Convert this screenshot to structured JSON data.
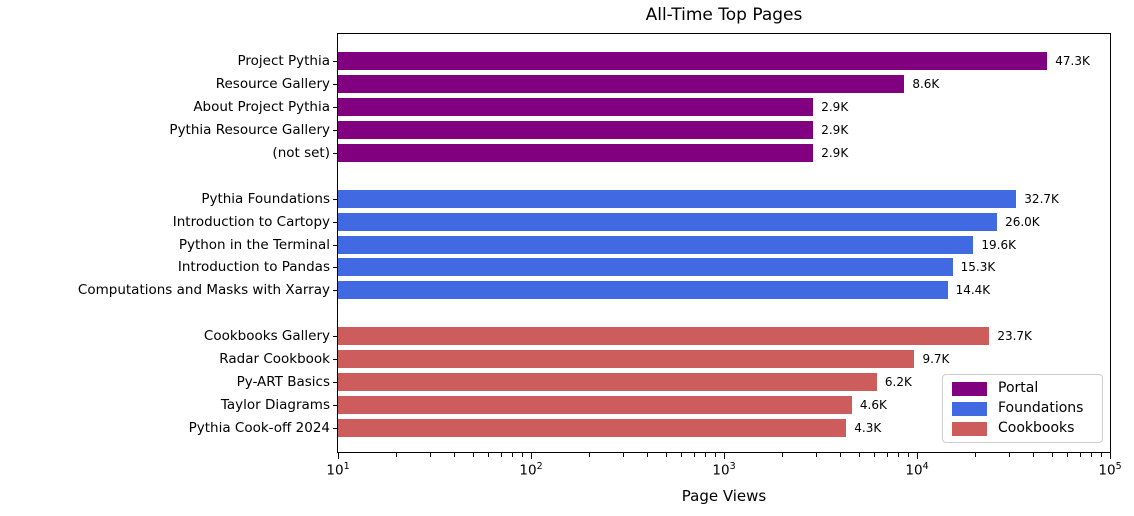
{
  "chart_data": {
    "type": "bar",
    "orientation": "horizontal",
    "title": "All-Time Top Pages",
    "xlabel": "Page Views",
    "x_scale": "log",
    "xlim": [
      10,
      100000
    ],
    "grid": false,
    "legend_position": "lower right",
    "x_ticks": [
      {
        "value": 10,
        "base": "10",
        "exp": "1"
      },
      {
        "value": 100,
        "base": "10",
        "exp": "2"
      },
      {
        "value": 1000,
        "base": "10",
        "exp": "3"
      },
      {
        "value": 10000,
        "base": "10",
        "exp": "4"
      },
      {
        "value": 100000,
        "base": "10",
        "exp": "5"
      }
    ],
    "series": [
      {
        "name": "Portal",
        "color": "#800080",
        "items": [
          {
            "label": "Project Pythia",
            "value": 47300,
            "value_label": "47.3K"
          },
          {
            "label": "Resource Gallery",
            "value": 8600,
            "value_label": "8.6K"
          },
          {
            "label": "About Project Pythia",
            "value": 2900,
            "value_label": "2.9K"
          },
          {
            "label": "Pythia Resource Gallery",
            "value": 2900,
            "value_label": "2.9K"
          },
          {
            "label": "(not set)",
            "value": 2900,
            "value_label": "2.9K"
          }
        ]
      },
      {
        "name": "Foundations",
        "color": "#4169E1",
        "items": [
          {
            "label": "Pythia Foundations",
            "value": 32700,
            "value_label": "32.7K"
          },
          {
            "label": "Introduction to Cartopy",
            "value": 26000,
            "value_label": "26.0K"
          },
          {
            "label": "Python in the Terminal",
            "value": 19600,
            "value_label": "19.6K"
          },
          {
            "label": "Introduction to Pandas",
            "value": 15300,
            "value_label": "15.3K"
          },
          {
            "label": "Computations and Masks with Xarray",
            "value": 14400,
            "value_label": "14.4K"
          }
        ]
      },
      {
        "name": "Cookbooks",
        "color": "#CD5C5C",
        "items": [
          {
            "label": "Cookbooks Gallery",
            "value": 23700,
            "value_label": "23.7K"
          },
          {
            "label": "Radar Cookbook",
            "value": 9700,
            "value_label": "9.7K"
          },
          {
            "label": "Py-ART Basics",
            "value": 6200,
            "value_label": "6.2K"
          },
          {
            "label": "Taylor Diagrams",
            "value": 4600,
            "value_label": "4.6K"
          },
          {
            "label": "Pythia Cook-off 2024",
            "value": 4300,
            "value_label": "4.3K"
          }
        ]
      }
    ]
  }
}
